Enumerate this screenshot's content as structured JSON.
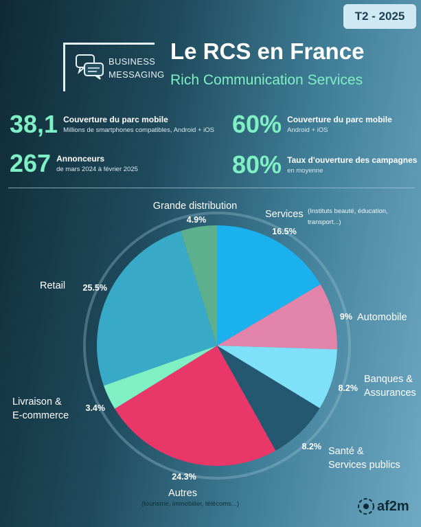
{
  "header": {
    "badge": "T2 - 2025",
    "brand_line1": "BUSINESS",
    "brand_line2": "MESSAGING",
    "title": "Le RCS en France",
    "subtitle": "Rich Communication Services"
  },
  "stats": [
    {
      "value": "38,1",
      "heading": "Couverture du parc mobile",
      "sub": "Millions de smartphones compatibles, Android + iOS"
    },
    {
      "value": "60%",
      "heading": "Couverture du parc mobile",
      "sub": "Android + iOS"
    },
    {
      "value": "267",
      "heading": "Annonceurs",
      "sub": "de mars 2024 à février 2025"
    },
    {
      "value": "80%",
      "heading": "Taux d'ouverture des campagnes",
      "sub": "en moyenne"
    }
  ],
  "icons": {
    "chat": "chat-bubbles-icon",
    "logo": "af2m-logo-icon"
  },
  "footer": {
    "logo_text": "af2m"
  },
  "chart_data": {
    "type": "pie",
    "start": "12 o'clock, clockwise",
    "slices": [
      {
        "label": "Services",
        "note": "(Instituts beauté, éducation, transport...)",
        "value": 16.5,
        "value_label": "16.5%",
        "color": "#1ab1ee"
      },
      {
        "label": "Automobile",
        "note": "",
        "value": 9,
        "value_label": "9%",
        "color": "#e283a9"
      },
      {
        "label": "Banques & Assurances",
        "note": "",
        "value": 8.2,
        "value_label": "8.2%",
        "color": "#7fe0fa"
      },
      {
        "label": "Santé & Services publics",
        "note": "",
        "value": 8.2,
        "value_label": "8.2%",
        "color": "#235870"
      },
      {
        "label": "Autres",
        "note": "(tourisme, immobilier, télécoms...)",
        "value": 24.3,
        "value_label": "24.3%",
        "color": "#e9376a"
      },
      {
        "label": "Livraison & E-commerce",
        "note": "",
        "value": 3.4,
        "value_label": "3.4%",
        "color": "#7ef0c3"
      },
      {
        "label": "Retail",
        "note": "",
        "value": 25.5,
        "value_label": "25.5%",
        "color": "#38a9c6"
      },
      {
        "label": "Grande distribution",
        "note": "",
        "value": 4.9,
        "value_label": "4.9%",
        "color": "#5db08e"
      }
    ]
  }
}
